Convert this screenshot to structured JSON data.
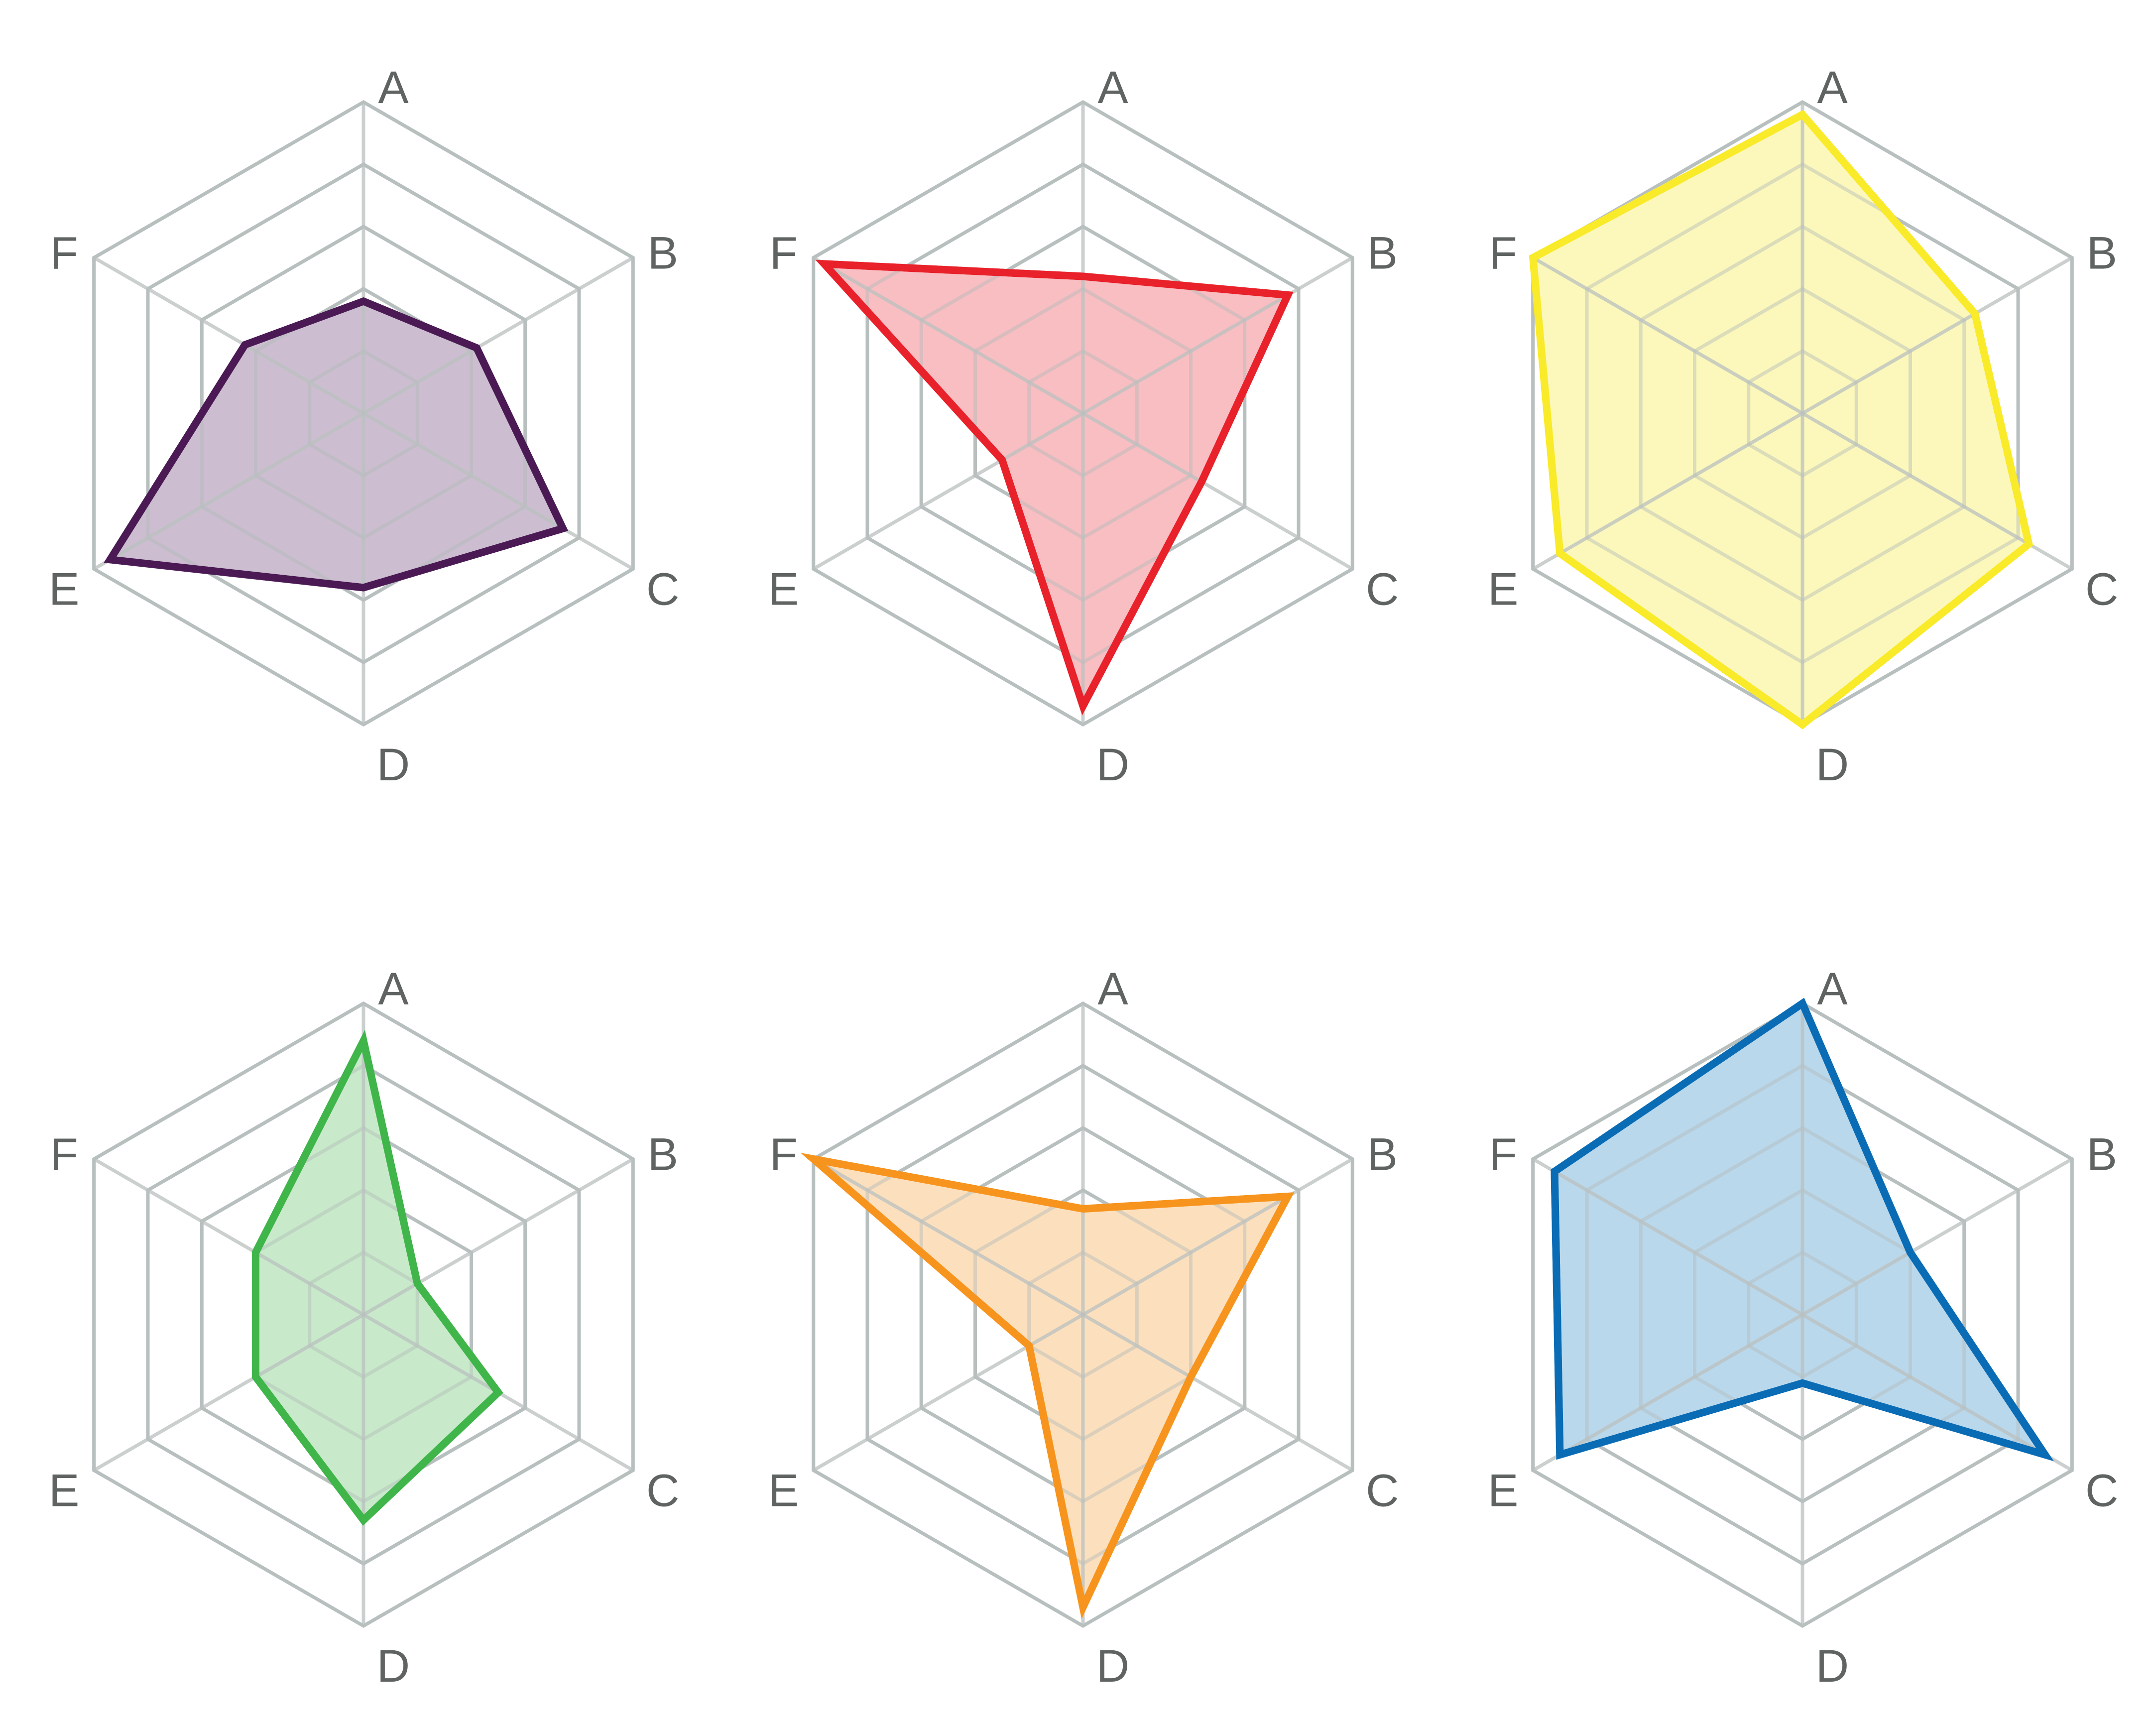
{
  "chart_data": [
    {
      "type": "radar",
      "axes": [
        "A",
        "B",
        "C",
        "D",
        "E",
        "F"
      ],
      "range": [
        0,
        5
      ],
      "grid_levels": 5,
      "values": [
        1.8,
        2.1,
        3.7,
        2.8,
        4.7,
        2.2
      ],
      "color": "#4b1a55",
      "fill": "#c8b9cc"
    },
    {
      "type": "radar",
      "axes": [
        "A",
        "B",
        "C",
        "D",
        "E",
        "F"
      ],
      "range": [
        0,
        5
      ],
      "grid_levels": 5,
      "values": [
        2.2,
        3.8,
        2.2,
        4.7,
        1.5,
        4.8
      ],
      "color": "#e8212a",
      "fill": "#f8b9bd"
    },
    {
      "type": "radar",
      "axes": [
        "A",
        "B",
        "C",
        "D",
        "E",
        "F"
      ],
      "range": [
        0,
        5
      ],
      "grid_levels": 5,
      "values": [
        4.8,
        3.2,
        4.2,
        5.0,
        4.5,
        5.0
      ],
      "color": "#f9ea2a",
      "fill": "#fcf7b5"
    },
    {
      "type": "radar",
      "axes": [
        "A",
        "B",
        "C",
        "D",
        "E",
        "F"
      ],
      "range": [
        0,
        5
      ],
      "grid_levels": 5,
      "values": [
        4.4,
        1.0,
        2.5,
        3.3,
        2.0,
        2.0
      ],
      "color": "#3fb54a",
      "fill": "#c3e8c5"
    },
    {
      "type": "radar",
      "axes": [
        "A",
        "B",
        "C",
        "D",
        "E",
        "F"
      ],
      "range": [
        0,
        5
      ],
      "grid_levels": 5,
      "values": [
        1.7,
        3.8,
        2.0,
        4.7,
        1.0,
        5.0
      ],
      "color": "#f7941e",
      "fill": "#fcddb9"
    },
    {
      "type": "radar",
      "axes": [
        "A",
        "B",
        "C",
        "D",
        "E",
        "F"
      ],
      "range": [
        0,
        5
      ],
      "grid_levels": 5,
      "values": [
        5.0,
        2.0,
        4.5,
        1.1,
        4.5,
        4.6
      ],
      "color": "#0a6cb5",
      "fill": "#b4d5ea"
    }
  ]
}
